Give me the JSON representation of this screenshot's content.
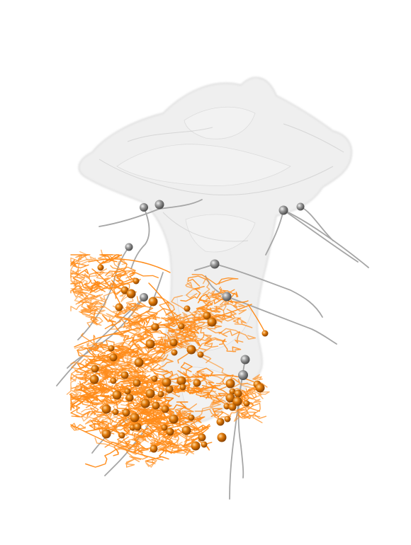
{
  "colors": {
    "background": "#ffffff",
    "surface_fill": "#e2e2e2",
    "surface_edge": "#b8b8b8",
    "gray_trace": "#a6a6a6",
    "gray_sphere": "#8c8c8c",
    "orange_trace": "#ff8c1a",
    "orange_sphere": "#e07a0a"
  }
}
